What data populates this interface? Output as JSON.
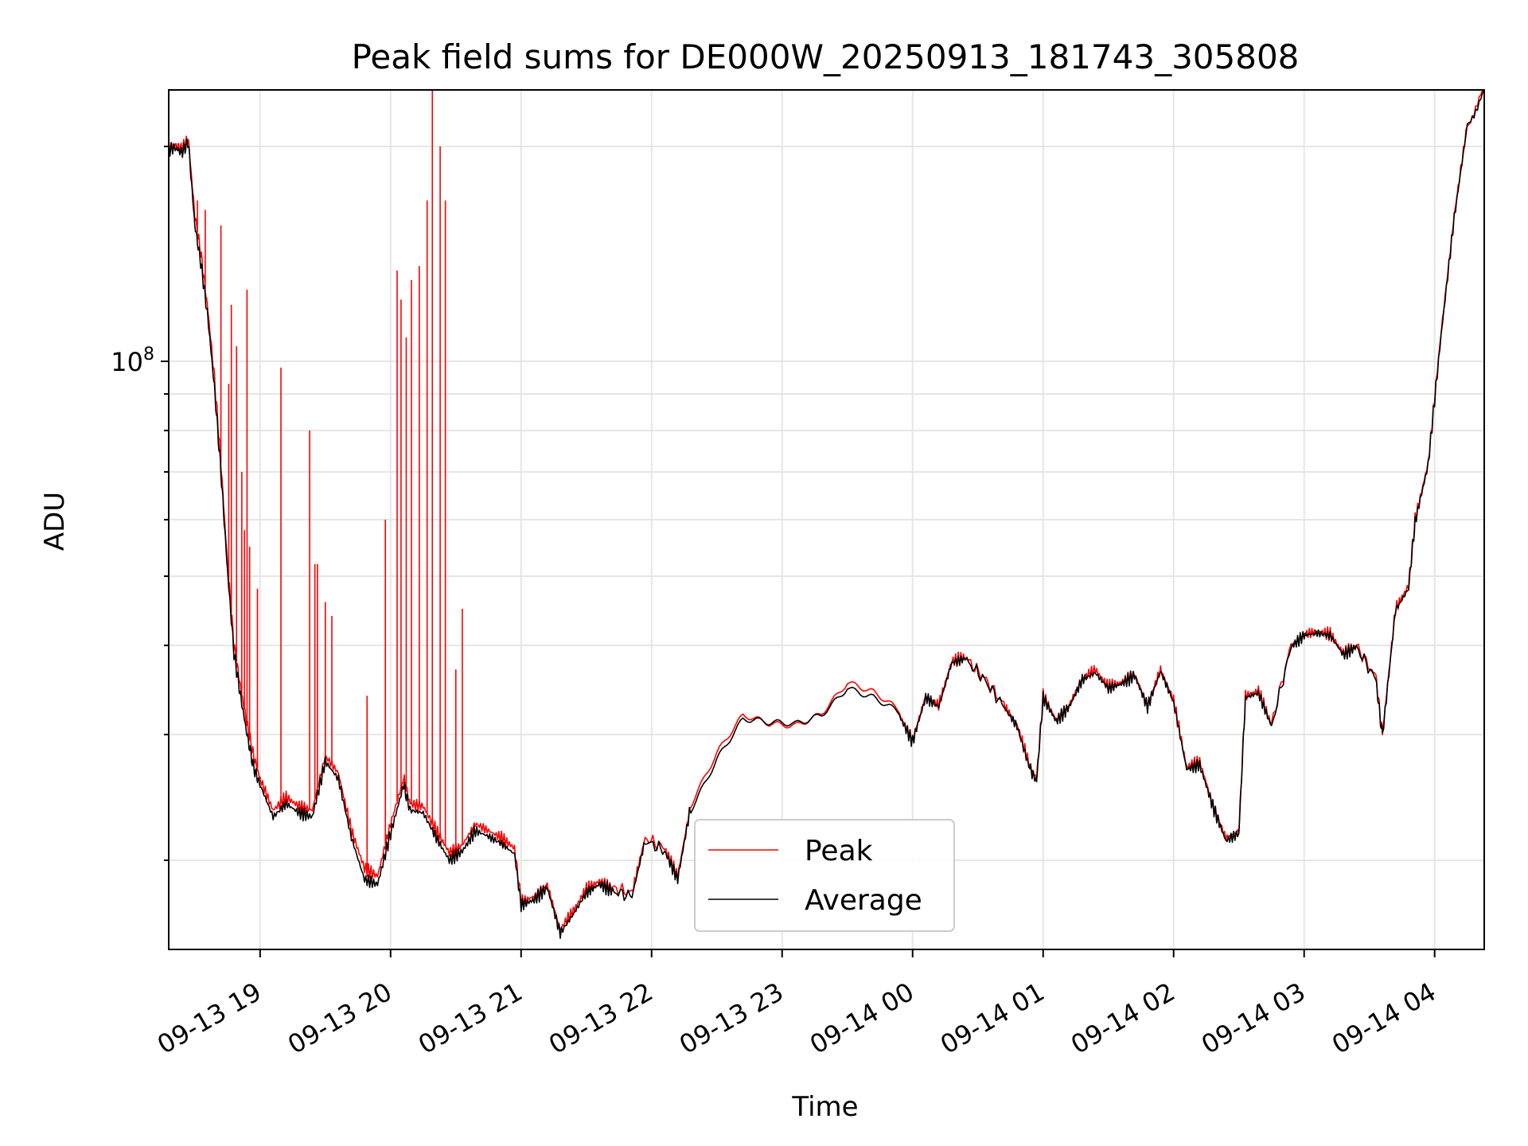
{
  "chart_data": {
    "type": "line",
    "title": "Peak field sums for DE000W_20250913_181743_305808",
    "xlabel": "Time",
    "ylabel": "ADU",
    "y_scale": "log",
    "ylim": [
      15000000,
      240000000
    ],
    "y_tick_labels": [
      {
        "value": 100000000,
        "base": "10",
        "exp": "8"
      }
    ],
    "x_range_hours": [
      18.3,
      28.38
    ],
    "x_ticks": [
      {
        "t": 19,
        "label": "09-13 19"
      },
      {
        "t": 20,
        "label": "09-13 20"
      },
      {
        "t": 21,
        "label": "09-13 21"
      },
      {
        "t": 22,
        "label": "09-13 22"
      },
      {
        "t": 23,
        "label": "09-13 23"
      },
      {
        "t": 24,
        "label": "09-14 00"
      },
      {
        "t": 25,
        "label": "09-14 01"
      },
      {
        "t": 26,
        "label": "09-14 02"
      },
      {
        "t": 27,
        "label": "09-14 03"
      },
      {
        "t": 28,
        "label": "09-14 04"
      }
    ],
    "grid": true,
    "legend": {
      "position": "bottom-center"
    },
    "series": [
      {
        "name": "Peak",
        "color": "#ff0000",
        "points": [
          [
            18.3,
            200000000
          ],
          [
            18.35,
            201000000
          ],
          [
            18.4,
            198000000
          ],
          [
            18.45,
            205000000
          ],
          [
            18.5,
            160000000
          ],
          [
            18.55,
            140000000
          ],
          [
            18.6,
            118000000
          ],
          [
            18.65,
            95000000
          ],
          [
            18.7,
            72000000
          ],
          [
            18.75,
            52000000
          ],
          [
            18.8,
            40000000
          ],
          [
            18.85,
            35000000
          ],
          [
            18.9,
            31000000
          ],
          [
            18.95,
            28000000
          ],
          [
            19.0,
            26000000
          ],
          [
            19.1,
            23500000
          ],
          [
            19.2,
            24500000
          ],
          [
            19.3,
            23800000
          ],
          [
            19.4,
            23500000
          ],
          [
            19.5,
            28000000
          ],
          [
            19.6,
            26500000
          ],
          [
            19.7,
            22000000
          ],
          [
            19.8,
            19500000
          ],
          [
            19.9,
            19000000
          ],
          [
            20.0,
            22500000
          ],
          [
            20.1,
            26000000
          ],
          [
            20.15,
            24000000
          ],
          [
            20.25,
            23800000
          ],
          [
            20.35,
            22000000
          ],
          [
            20.45,
            20500000
          ],
          [
            20.55,
            21000000
          ],
          [
            20.65,
            22500000
          ],
          [
            20.75,
            22000000
          ],
          [
            20.85,
            21500000
          ],
          [
            20.95,
            20800000
          ],
          [
            21.0,
            17500000
          ],
          [
            21.1,
            17800000
          ],
          [
            21.2,
            18500000
          ],
          [
            21.3,
            16000000
          ],
          [
            21.4,
            17000000
          ],
          [
            21.5,
            18200000
          ],
          [
            21.6,
            18700000
          ],
          [
            21.7,
            18300000
          ],
          [
            21.85,
            18000000
          ],
          [
            21.95,
            21500000
          ],
          [
            22.1,
            20800000
          ],
          [
            22.2,
            19000000
          ],
          [
            22.3,
            24000000
          ],
          [
            22.5,
            28000000
          ],
          [
            22.7,
            31500000
          ],
          [
            22.9,
            31000000
          ],
          [
            23.1,
            31200000
          ],
          [
            23.3,
            32500000
          ],
          [
            23.5,
            35500000
          ],
          [
            23.7,
            34000000
          ],
          [
            23.9,
            32000000
          ],
          [
            24.0,
            29500000
          ],
          [
            24.1,
            34000000
          ],
          [
            24.2,
            33000000
          ],
          [
            24.3,
            38000000
          ],
          [
            24.4,
            38500000
          ],
          [
            24.55,
            36000000
          ],
          [
            24.7,
            33000000
          ],
          [
            24.8,
            31000000
          ],
          [
            24.9,
            27000000
          ],
          [
            24.95,
            26000000
          ],
          [
            25.0,
            34000000
          ],
          [
            25.1,
            31500000
          ],
          [
            25.2,
            33000000
          ],
          [
            25.3,
            36000000
          ],
          [
            25.4,
            37000000
          ],
          [
            25.5,
            35000000
          ],
          [
            25.6,
            35500000
          ],
          [
            25.7,
            36500000
          ],
          [
            25.8,
            33000000
          ],
          [
            25.9,
            37000000
          ],
          [
            26.0,
            33500000
          ],
          [
            26.1,
            27000000
          ],
          [
            26.2,
            27500000
          ],
          [
            26.3,
            24000000
          ],
          [
            26.4,
            21500000
          ],
          [
            26.5,
            22000000
          ],
          [
            26.55,
            34000000
          ],
          [
            26.65,
            34500000
          ],
          [
            26.75,
            31000000
          ],
          [
            26.9,
            40000000
          ],
          [
            27.0,
            41500000
          ],
          [
            27.1,
            41800000
          ],
          [
            27.2,
            41500000
          ],
          [
            27.3,
            39000000
          ],
          [
            27.4,
            40000000
          ],
          [
            27.55,
            36000000
          ],
          [
            27.6,
            30000000
          ],
          [
            27.7,
            45000000
          ],
          [
            27.8,
            48500000
          ],
          [
            27.85,
            60000000
          ],
          [
            27.95,
            72000000
          ],
          [
            28.05,
            110000000
          ],
          [
            28.15,
            160000000
          ],
          [
            28.25,
            215000000
          ],
          [
            28.38,
            240000000
          ]
        ],
        "spikes": [
          [
            18.52,
            168000000
          ],
          [
            18.58,
            163000000
          ],
          [
            18.7,
            155000000
          ],
          [
            18.76,
            93000000
          ],
          [
            18.78,
            120000000
          ],
          [
            18.82,
            105000000
          ],
          [
            18.86,
            70000000
          ],
          [
            18.88,
            58000000
          ],
          [
            18.9,
            126000000
          ],
          [
            18.92,
            55000000
          ],
          [
            18.98,
            48000000
          ],
          [
            19.16,
            98000000
          ],
          [
            19.38,
            80000000
          ],
          [
            19.42,
            52000000
          ],
          [
            19.44,
            52000000
          ],
          [
            19.5,
            46000000
          ],
          [
            19.55,
            44000000
          ],
          [
            19.82,
            34000000
          ],
          [
            19.96,
            60000000
          ],
          [
            20.05,
            134000000
          ],
          [
            20.08,
            122000000
          ],
          [
            20.12,
            108000000
          ],
          [
            20.16,
            130000000
          ],
          [
            20.22,
            136000000
          ],
          [
            20.28,
            168000000
          ],
          [
            20.32,
            240000000
          ],
          [
            20.38,
            200000000
          ],
          [
            20.42,
            168000000
          ],
          [
            20.5,
            37000000
          ],
          [
            20.55,
            45000000
          ]
        ]
      },
      {
        "name": "Average",
        "color": "#000000",
        "points": [
          [
            18.3,
            198000000
          ],
          [
            18.35,
            199000000
          ],
          [
            18.4,
            196000000
          ],
          [
            18.45,
            203000000
          ],
          [
            18.5,
            155000000
          ],
          [
            18.55,
            136000000
          ],
          [
            18.6,
            115000000
          ],
          [
            18.65,
            92000000
          ],
          [
            18.7,
            70000000
          ],
          [
            18.75,
            51000000
          ],
          [
            18.8,
            39000000
          ],
          [
            18.85,
            34000000
          ],
          [
            18.9,
            30000000
          ],
          [
            18.95,
            27000000
          ],
          [
            19.0,
            25500000
          ],
          [
            19.1,
            23000000
          ],
          [
            19.2,
            24000000
          ],
          [
            19.3,
            23300000
          ],
          [
            19.4,
            23000000
          ],
          [
            19.5,
            27500000
          ],
          [
            19.6,
            26000000
          ],
          [
            19.7,
            21500000
          ],
          [
            19.8,
            18800000
          ],
          [
            19.9,
            18500000
          ],
          [
            20.0,
            21800000
          ],
          [
            20.1,
            25500000
          ],
          [
            20.15,
            23500000
          ],
          [
            20.25,
            23300000
          ],
          [
            20.35,
            21500000
          ],
          [
            20.45,
            20000000
          ],
          [
            20.55,
            20600000
          ],
          [
            20.65,
            22000000
          ],
          [
            20.75,
            21600000
          ],
          [
            20.85,
            21100000
          ],
          [
            20.95,
            20400000
          ],
          [
            21.0,
            17300000
          ],
          [
            21.1,
            17600000
          ],
          [
            21.2,
            18300000
          ],
          [
            21.3,
            15800000
          ],
          [
            21.4,
            16800000
          ],
          [
            21.5,
            18000000
          ],
          [
            21.6,
            18500000
          ],
          [
            21.7,
            18100000
          ],
          [
            21.85,
            17800000
          ],
          [
            21.95,
            21300000
          ],
          [
            22.1,
            20600000
          ],
          [
            22.2,
            18800000
          ],
          [
            22.3,
            23800000
          ],
          [
            22.5,
            27800000
          ],
          [
            22.7,
            31200000
          ],
          [
            22.9,
            30800000
          ],
          [
            23.1,
            31000000
          ],
          [
            23.3,
            32300000
          ],
          [
            23.5,
            35300000
          ],
          [
            23.7,
            33800000
          ],
          [
            23.9,
            31800000
          ],
          [
            24.0,
            29300000
          ],
          [
            24.1,
            33800000
          ],
          [
            24.2,
            32800000
          ],
          [
            24.3,
            37800000
          ],
          [
            24.4,
            38300000
          ],
          [
            24.55,
            35800000
          ],
          [
            24.7,
            32800000
          ],
          [
            24.8,
            30800000
          ],
          [
            24.9,
            26800000
          ],
          [
            24.95,
            25800000
          ],
          [
            25.0,
            33800000
          ],
          [
            25.1,
            31300000
          ],
          [
            25.2,
            32800000
          ],
          [
            25.3,
            35800000
          ],
          [
            25.4,
            36600000
          ],
          [
            25.5,
            34800000
          ],
          [
            25.6,
            35300000
          ],
          [
            25.7,
            36300000
          ],
          [
            25.8,
            32800000
          ],
          [
            25.9,
            36800000
          ],
          [
            26.0,
            33300000
          ],
          [
            26.1,
            26800000
          ],
          [
            26.2,
            27200000
          ],
          [
            26.3,
            23800000
          ],
          [
            26.4,
            21300000
          ],
          [
            26.5,
            21800000
          ],
          [
            26.55,
            33800000
          ],
          [
            26.65,
            34300000
          ],
          [
            26.75,
            30800000
          ],
          [
            26.9,
            39800000
          ],
          [
            27.0,
            41300000
          ],
          [
            27.1,
            41600000
          ],
          [
            27.2,
            41300000
          ],
          [
            27.3,
            38800000
          ],
          [
            27.4,
            39800000
          ],
          [
            27.55,
            35800000
          ],
          [
            27.6,
            29800000
          ],
          [
            27.7,
            44800000
          ],
          [
            27.8,
            48000000
          ],
          [
            27.85,
            59500000
          ],
          [
            27.95,
            71500000
          ],
          [
            28.05,
            109000000
          ],
          [
            28.15,
            159000000
          ],
          [
            28.25,
            214000000
          ],
          [
            28.38,
            240000000
          ]
        ]
      }
    ]
  }
}
